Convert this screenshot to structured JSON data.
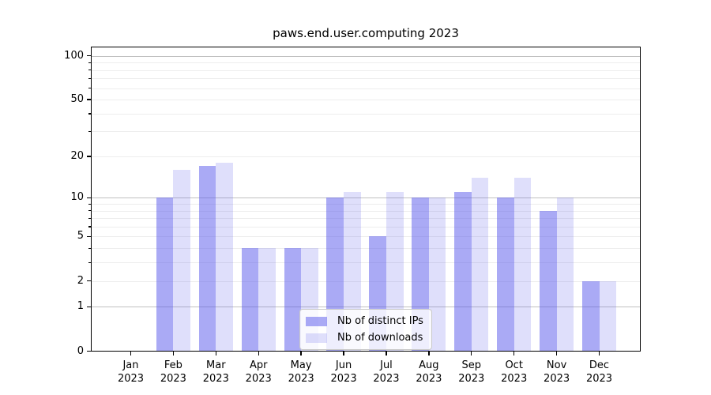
{
  "title": "paws.end.user.computing 2023",
  "chart_data": {
    "type": "bar",
    "title": "paws.end.user.computing 2023",
    "categories": [
      "Jan",
      "Feb",
      "Mar",
      "Apr",
      "May",
      "Jun",
      "Jul",
      "Aug",
      "Sep",
      "Oct",
      "Nov",
      "Dec"
    ],
    "category_year": "2023",
    "series": [
      {
        "name": "Nb of distinct IPs",
        "color": "rgba(85,85,235,0.5)",
        "values": [
          0,
          10,
          17,
          4,
          4,
          10,
          5,
          10,
          11,
          10,
          8,
          2
        ]
      },
      {
        "name": "Nb of downloads",
        "color": "rgba(85,85,235,0.19)",
        "values": [
          0,
          16,
          18,
          4,
          4,
          11,
          11,
          10,
          14,
          14,
          10,
          2
        ]
      }
    ],
    "xlabel": "",
    "ylabel": "",
    "yscale": "log1p",
    "ylim": [
      0,
      116
    ],
    "y_ticks": [
      100,
      50,
      20,
      10,
      5,
      2,
      1,
      0
    ],
    "y_major_gridlines": [
      1,
      10,
      100
    ],
    "y_minor_gridlines": [
      2,
      3,
      4,
      5,
      6,
      7,
      8,
      9,
      20,
      30,
      40,
      50,
      60,
      70,
      80,
      90
    ],
    "grid": true,
    "legend_position": "lower center"
  }
}
